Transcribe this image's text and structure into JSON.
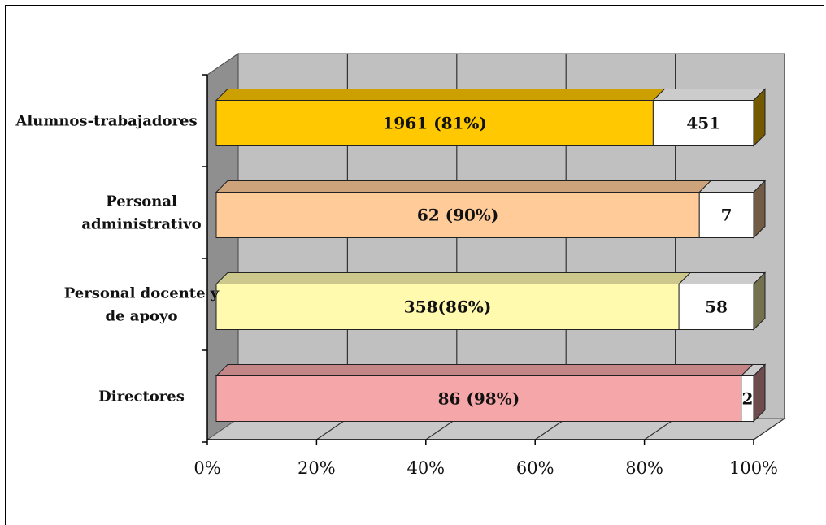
{
  "chart_data": {
    "type": "bar",
    "orientation": "horizontal",
    "stacked": "percent",
    "three_d": true,
    "xlim": [
      0,
      100
    ],
    "x_ticks": [
      "0%",
      "20%",
      "40%",
      "60%",
      "80%",
      "100%"
    ],
    "grid": true,
    "categories": [
      [
        "Alumnos-trabajadores"
      ],
      [
        "Personal",
        "administrativo"
      ],
      [
        "Personal docente y",
        "de apoyo"
      ],
      [
        "Directores"
      ]
    ],
    "series": [
      {
        "values": [
          1961,
          62,
          358,
          86
        ],
        "labels": [
          "1961 (81%)",
          "62 (90%)",
          "358(86%)",
          "86 (98%)"
        ],
        "percents": [
          81.3,
          89.9,
          86.1,
          97.7
        ],
        "colors": [
          "#FFC800",
          "#FFCC99",
          "#FFFAAE",
          "#F4A6A8"
        ]
      },
      {
        "values": [
          451,
          7,
          58,
          2
        ],
        "labels": [
          "451",
          "7",
          "58",
          "2"
        ],
        "percents": [
          18.7,
          10.1,
          13.9,
          2.3
        ],
        "colors": [
          "#FFFFFF",
          "#FFFFFF",
          "#FFFFFF",
          "#FFFFFF"
        ]
      }
    ]
  }
}
